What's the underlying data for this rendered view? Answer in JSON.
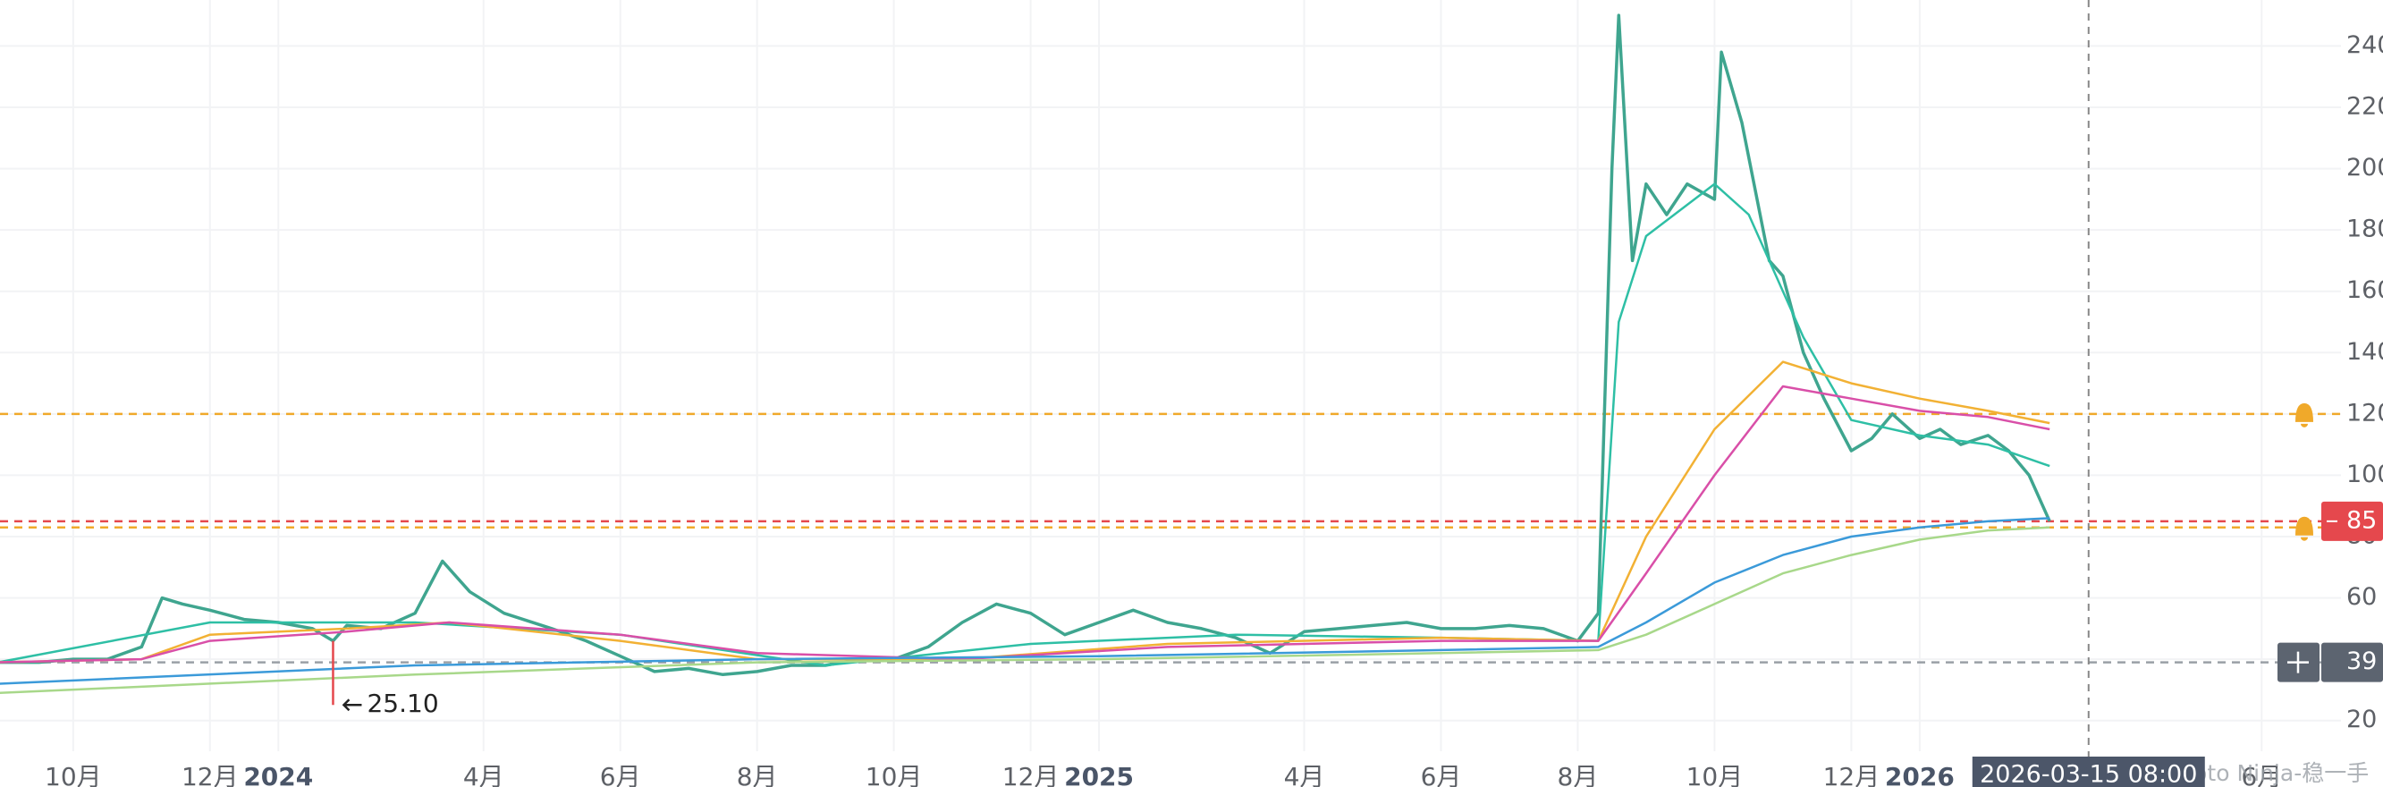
{
  "chart_data": {
    "type": "line",
    "xlim": [
      -1.07,
      33.16
    ],
    "ylim": [
      10,
      255
    ],
    "xticks": [
      {
        "value": 0,
        "label": "10月"
      },
      {
        "value": 2,
        "label": "12月"
      },
      {
        "value": 3,
        "label": "2024",
        "bold": true
      },
      {
        "value": 6,
        "label": "4月"
      },
      {
        "value": 8,
        "label": "6月"
      },
      {
        "value": 10,
        "label": "8月"
      },
      {
        "value": 12,
        "label": "10月"
      },
      {
        "value": 14,
        "label": "12月"
      },
      {
        "value": 15,
        "label": "2025",
        "bold": true
      },
      {
        "value": 18,
        "label": "4月"
      },
      {
        "value": 20,
        "label": "6月"
      },
      {
        "value": 22,
        "label": "8月"
      },
      {
        "value": 24,
        "label": "10月"
      },
      {
        "value": 26,
        "label": "12月"
      },
      {
        "value": 27,
        "label": "2026",
        "bold": true
      },
      {
        "value": 32,
        "label": "6月"
      }
    ],
    "yticks": [
      20,
      40,
      60,
      80,
      100,
      120,
      140,
      160,
      180,
      200,
      220,
      240
    ],
    "grid": true,
    "series": [
      {
        "color": "#3fa58f",
        "x": [
          -1.1,
          -0.5,
          0,
          0.5,
          1,
          1.3,
          1.6,
          2,
          2.5,
          3,
          3.5,
          3.8,
          4,
          4.5,
          5,
          5.4,
          5.8,
          6.3,
          7,
          7.5,
          8,
          8.5,
          9,
          9.5,
          10,
          10.5,
          11,
          11.5,
          12,
          12.5,
          13,
          13.5,
          14,
          14.5,
          15,
          15.5,
          16,
          16.5,
          17,
          17.5,
          18,
          18.5,
          19,
          19.5,
          20,
          20.5,
          21,
          21.5,
          22,
          22.3,
          22.5,
          22.6,
          22.8,
          23,
          23.3,
          23.6,
          24,
          24.1,
          24.4,
          24.8,
          25,
          25.3,
          25.6,
          26,
          26.3,
          26.6,
          27,
          27.3,
          27.6,
          28,
          28.3,
          28.6,
          28.9
        ],
        "values": [
          39,
          39,
          40,
          40,
          44,
          60,
          58,
          56,
          53,
          52,
          50,
          46,
          51,
          50,
          55,
          72,
          62,
          55,
          50,
          46,
          41,
          36,
          37,
          35,
          36,
          38,
          38,
          40,
          40,
          44,
          52,
          58,
          55,
          48,
          52,
          56,
          52,
          50,
          47,
          42,
          49,
          50,
          51,
          52,
          50,
          50,
          51,
          50,
          46,
          55,
          200,
          250,
          170,
          195,
          185,
          195,
          190,
          238,
          215,
          170,
          165,
          140,
          125,
          108,
          112,
          120,
          112,
          115,
          110,
          113,
          108,
          100,
          85
        ]
      },
      {
        "color": "#2ebfa5",
        "x": [
          -1.1,
          2,
          5,
          8,
          11,
          14,
          17,
          20,
          22.3,
          22.6,
          23,
          24,
          24.5,
          25.3,
          26,
          27,
          28,
          28.9
        ],
        "values": [
          39,
          52,
          52,
          48,
          38,
          45,
          48,
          47,
          46,
          150,
          178,
          195,
          185,
          145,
          118,
          113,
          110,
          103
        ]
      },
      {
        "color": "#f2b134",
        "x": [
          -1.1,
          1,
          2,
          4,
          5.5,
          8,
          10,
          13,
          16,
          20,
          22.3,
          23,
          24,
          25,
          26,
          27,
          28,
          28.9
        ],
        "values": [
          39,
          40,
          48,
          50,
          52,
          46,
          40,
          40,
          45,
          47,
          46,
          80,
          115,
          137,
          130,
          125,
          121,
          117
        ]
      },
      {
        "color": "#d94fa8",
        "x": [
          -1.1,
          1,
          2,
          4,
          5.5,
          8,
          10,
          13,
          16,
          20,
          22.3,
          23,
          24,
          25,
          26,
          27,
          28,
          28.9
        ],
        "values": [
          39,
          40,
          46,
          49,
          52,
          48,
          42,
          40,
          44,
          46,
          46,
          68,
          100,
          129,
          125,
          121,
          119,
          115
        ]
      },
      {
        "color": "#3b9ad9",
        "x": [
          -1.1,
          5,
          10,
          15,
          20,
          22.3,
          23,
          24,
          25,
          26,
          27,
          28,
          28.9
        ],
        "values": [
          32,
          38,
          40,
          41,
          43,
          44,
          52,
          65,
          74,
          80,
          83,
          85,
          86
        ]
      },
      {
        "color": "#a8d88a",
        "x": [
          -1.1,
          5,
          10,
          15,
          20,
          22.3,
          23,
          24,
          25,
          26,
          27,
          28,
          28.9
        ],
        "values": [
          29,
          35,
          39,
          40,
          42,
          43,
          48,
          58,
          68,
          74,
          79,
          82,
          83
        ]
      }
    ],
    "hlines": [
      {
        "value": 120,
        "color": "#f0a92a",
        "alert": true
      },
      {
        "value": 85,
        "color": "#e5484d",
        "label": "85"
      },
      {
        "value": 83,
        "color": "#f0a92a",
        "alert": true
      },
      {
        "value": 39,
        "color": "#9aa0a6",
        "label": "39"
      }
    ],
    "low_marker": {
      "x": 3.8,
      "value": 25.1,
      "label": "25.10"
    },
    "crosshair": {
      "x": 29.47,
      "label": "2026-03-15 08:00"
    },
    "watermark": "@Crypto Ninja-稳一手"
  }
}
